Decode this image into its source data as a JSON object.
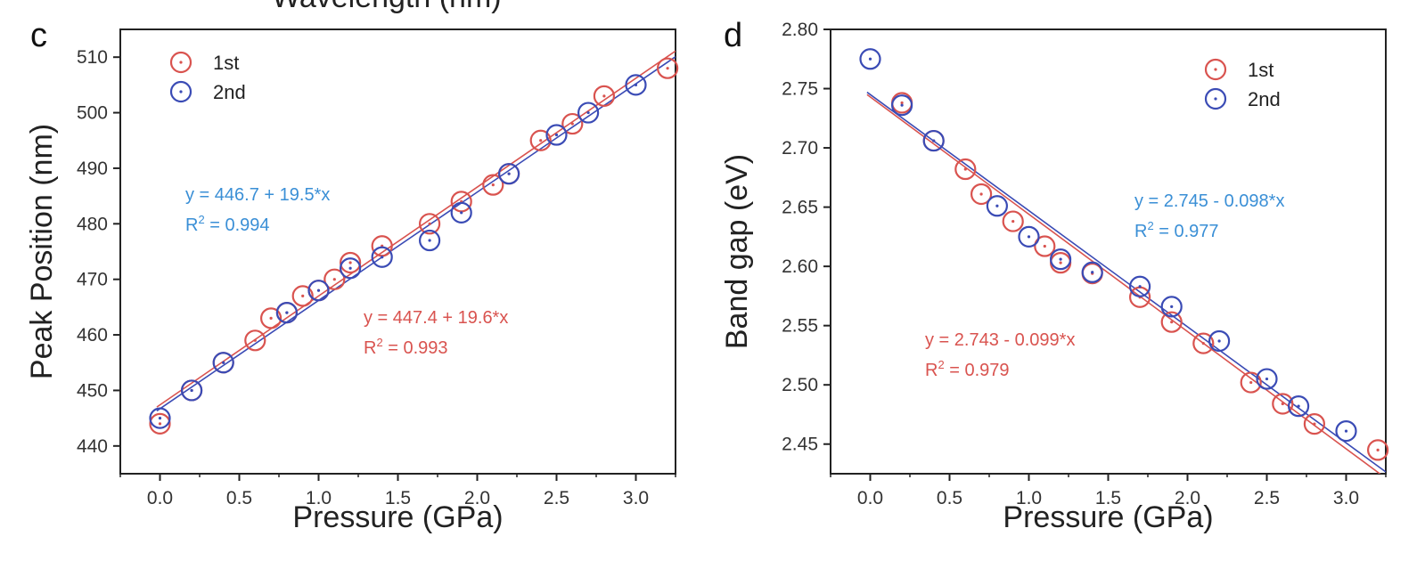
{
  "top_cut_titles": [
    "Wavelength (nm)",
    ""
  ],
  "chart_data": [
    {
      "panel": "c",
      "type": "scatter",
      "xlabel": "Pressure (GPa)",
      "ylabel": "Peak Position (nm)",
      "xlim": [
        -0.25,
        3.25
      ],
      "ylim": [
        435,
        515
      ],
      "xticks": [
        "0.0",
        "0.5",
        "1.0",
        "1.5",
        "2.0",
        "2.5",
        "3.0"
      ],
      "yticks": [
        "440",
        "450",
        "460",
        "470",
        "480",
        "490",
        "500",
        "510"
      ],
      "legend": "top-left",
      "grid": false,
      "series": [
        {
          "name": "1st",
          "color": "#d9534f",
          "fit": {
            "intercept": 447.4,
            "slope": 19.6
          },
          "equation": "y = 447.4 + 19.6*x",
          "r2": "= 0.993",
          "points": [
            [
              0,
              444
            ],
            [
              0.2,
              450
            ],
            [
              0.4,
              455
            ],
            [
              0.6,
              459
            ],
            [
              0.7,
              463
            ],
            [
              0.8,
              464
            ],
            [
              0.9,
              467
            ],
            [
              1.0,
              468
            ],
            [
              1.1,
              470
            ],
            [
              1.2,
              473
            ],
            [
              1.4,
              476
            ],
            [
              1.7,
              480
            ],
            [
              1.9,
              484
            ],
            [
              2.1,
              487
            ],
            [
              2.2,
              489
            ],
            [
              2.4,
              495
            ],
            [
              2.6,
              498
            ],
            [
              2.8,
              503
            ],
            [
              3.2,
              508
            ]
          ]
        },
        {
          "name": "2nd",
          "color": "#3a4bb5",
          "fit": {
            "intercept": 446.7,
            "slope": 19.5
          },
          "equation": "y = 446.7 + 19.5*x",
          "r2": "= 0.994",
          "points": [
            [
              0,
              445
            ],
            [
              0.2,
              450
            ],
            [
              0.4,
              455
            ],
            [
              0.8,
              464
            ],
            [
              1.0,
              468
            ],
            [
              1.2,
              472
            ],
            [
              1.4,
              474
            ],
            [
              1.7,
              477
            ],
            [
              1.9,
              482
            ],
            [
              2.2,
              489
            ],
            [
              2.5,
              496
            ],
            [
              2.7,
              500
            ],
            [
              3.0,
              505
            ]
          ]
        }
      ]
    },
    {
      "panel": "d",
      "type": "scatter",
      "xlabel": "Pressure (GPa)",
      "ylabel": "Band gap (eV)",
      "xlim": [
        -0.25,
        3.25
      ],
      "ylim": [
        2.425,
        2.8
      ],
      "xticks": [
        "0.0",
        "0.5",
        "1.0",
        "1.5",
        "2.0",
        "2.5",
        "3.0"
      ],
      "yticks": [
        "2.45",
        "2.50",
        "2.55",
        "2.60",
        "2.65",
        "2.70",
        "2.75",
        "2.80"
      ],
      "legend": "top-right",
      "grid": false,
      "series": [
        {
          "name": "1st",
          "color": "#d9534f",
          "fit": {
            "intercept": 2.743,
            "slope": -0.099
          },
          "equation": "y = 2.743 - 0.099*x",
          "r2": "= 0.979",
          "points": [
            [
              0.2,
              2.738
            ],
            [
              0.4,
              2.706
            ],
            [
              0.6,
              2.682
            ],
            [
              0.7,
              2.661
            ],
            [
              0.9,
              2.638
            ],
            [
              1.1,
              2.617
            ],
            [
              1.2,
              2.603
            ],
            [
              1.4,
              2.594
            ],
            [
              1.7,
              2.574
            ],
            [
              1.9,
              2.553
            ],
            [
              2.1,
              2.535
            ],
            [
              2.4,
              2.502
            ],
            [
              2.6,
              2.484
            ],
            [
              2.8,
              2.467
            ],
            [
              3.2,
              2.445
            ]
          ]
        },
        {
          "name": "2nd",
          "color": "#3a4bb5",
          "fit": {
            "intercept": 2.745,
            "slope": -0.098
          },
          "equation": "y = 2.745 - 0.098*x",
          "r2": "= 0.977",
          "points": [
            [
              0,
              2.775
            ],
            [
              0.2,
              2.736
            ],
            [
              0.4,
              2.706
            ],
            [
              0.8,
              2.651
            ],
            [
              1.0,
              2.625
            ],
            [
              1.2,
              2.606
            ],
            [
              1.4,
              2.595
            ],
            [
              1.7,
              2.583
            ],
            [
              1.9,
              2.566
            ],
            [
              2.2,
              2.537
            ],
            [
              2.5,
              2.505
            ],
            [
              2.7,
              2.482
            ],
            [
              3.0,
              2.461
            ]
          ]
        }
      ]
    }
  ]
}
